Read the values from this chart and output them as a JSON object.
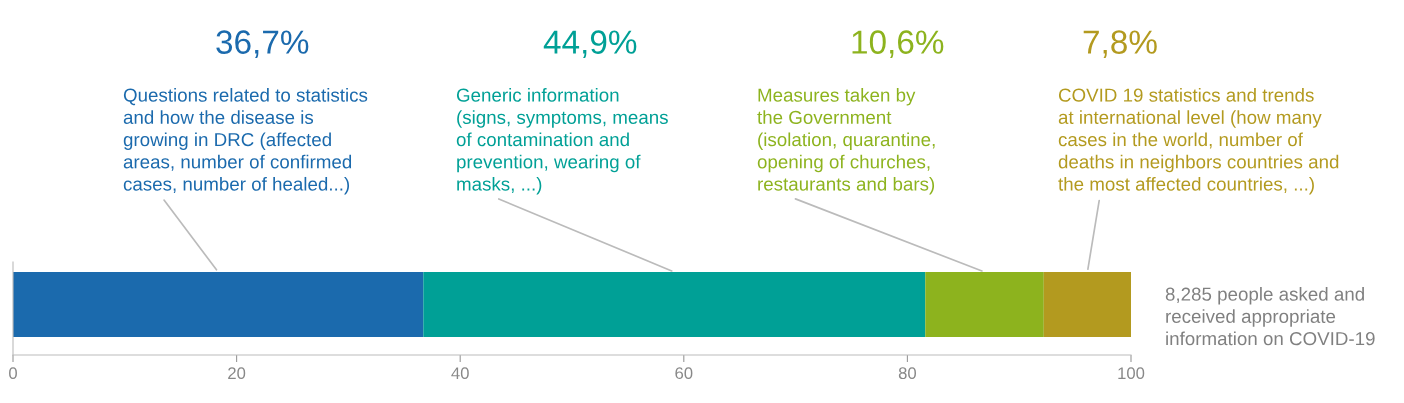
{
  "chart_data": {
    "type": "bar",
    "orientation": "horizontal",
    "stacked": true,
    "categories": [
      null
    ],
    "series": [
      {
        "color": "#1b6aad",
        "values": [
          36.7
        ]
      },
      {
        "color": "#00a096",
        "values": [
          44.9
        ]
      },
      {
        "color": "#8db31e",
        "values": [
          10.6
        ]
      },
      {
        "color": "#b39a1f",
        "values": [
          7.8
        ]
      }
    ],
    "xlim": [
      0,
      100
    ],
    "xticks": [
      0,
      20,
      40,
      60,
      80,
      100
    ],
    "annotations": [
      "36,7%",
      "Questions related to statistics\nand how the disease is\ngrowing in DRC (affected\nareas, number of confirmed\ncases, number of healed...)",
      "44,9%",
      "Generic information\n(signs, symptoms, means\nof contamination and\nprevention, wearing of\nmasks, ...)",
      "10,6%",
      "Measures taken by\nthe Government\n(isolation, quarantine,\nopening of churches,\nrestaurants and bars)",
      "7,8%",
      "COVID 19 statistics and trends\nat international level (how many\ncases in the world, number of\ndeaths in neighbors countries and\nthe most affected countries, ...)",
      "8,285 people asked and\nreceived appropriate\ninformation on COVID-19"
    ]
  }
}
